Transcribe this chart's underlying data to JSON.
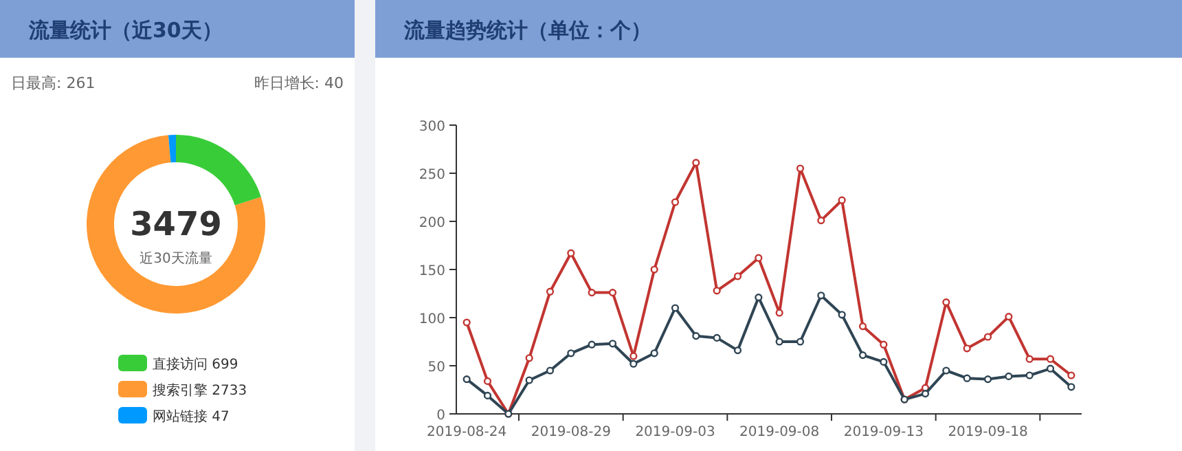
{
  "chart_data": [
    {
      "type": "donut",
      "title": "流量统计（近30天）",
      "categories": [
        "直接访问",
        "搜索引擎",
        "网站链接"
      ],
      "values": [
        699,
        2733,
        47
      ],
      "colors": [
        "#39cc39",
        "#ff9933",
        "#0099ff"
      ],
      "legend": "bottom",
      "value_labels": [
        "699",
        "2733",
        "47"
      ],
      "annotations": [
        "日最高: 261",
        "昨日增长: 40",
        "3479",
        "近30天流量"
      ]
    },
    {
      "type": "line",
      "title": "流量趋势统计（单位：个）",
      "categories": [
        "2019-08-24",
        null,
        null,
        null,
        null,
        "2019-08-29",
        null,
        null,
        null,
        null,
        "2019-09-03",
        null,
        null,
        null,
        null,
        "2019-09-08",
        null,
        null,
        null,
        null,
        "2019-09-13",
        null,
        null,
        null,
        null,
        "2019-09-18",
        null,
        null,
        null,
        null
      ],
      "series": [
        {
          "color": "#c23531",
          "values": [
            95,
            34,
            0,
            58,
            127,
            167,
            126,
            126,
            60,
            150,
            220,
            261,
            128,
            143,
            162,
            105,
            255,
            201,
            222,
            91,
            72,
            15,
            27,
            116,
            68,
            80,
            101,
            57,
            57,
            40
          ]
        },
        {
          "color": "#2f4554",
          "values": [
            36,
            19,
            0,
            35,
            45,
            63,
            72,
            73,
            52,
            63,
            110,
            81,
            79,
            66,
            121,
            75,
            75,
            123,
            103,
            61,
            54,
            15,
            21,
            45,
            37,
            36,
            39,
            40,
            47,
            28
          ]
        }
      ],
      "ylim": [
        0,
        300
      ],
      "yticks": [
        0,
        50,
        100,
        150,
        200,
        250,
        300
      ],
      "marker": "circle",
      "grid": false
    }
  ]
}
